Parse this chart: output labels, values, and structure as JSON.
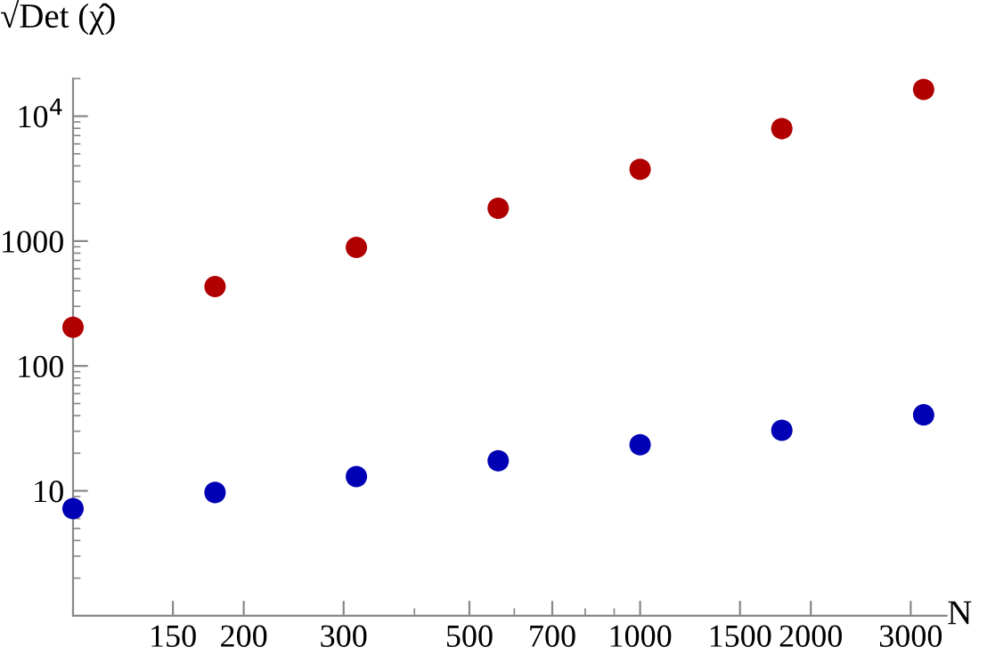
{
  "chart_data": {
    "type": "scatter",
    "ylabel": "√Det (χ̂)",
    "xlabel": "N",
    "log": "xy",
    "marker": "circle",
    "grid": false,
    "legend": false,
    "x": [
      100,
      178,
      316,
      562,
      1000,
      1778,
      3162
    ],
    "series": [
      {
        "color": "#b00000",
        "values": [
          204,
          432,
          889,
          1830,
          3760,
          7940,
          16400
        ]
      },
      {
        "color": "#0000b4",
        "values": [
          7.2,
          9.7,
          13,
          17.4,
          23.4,
          30.5,
          40.6
        ]
      }
    ],
    "xlim": [
      100,
      3470
    ],
    "ylim": [
      1,
      20000
    ],
    "xticks": [
      150,
      200,
      300,
      500,
      700,
      1000,
      1500,
      2000,
      3000
    ],
    "yticks": [
      10,
      100,
      1000,
      {
        "value": 10000,
        "label": "10$^{4}$"
      }
    ]
  }
}
